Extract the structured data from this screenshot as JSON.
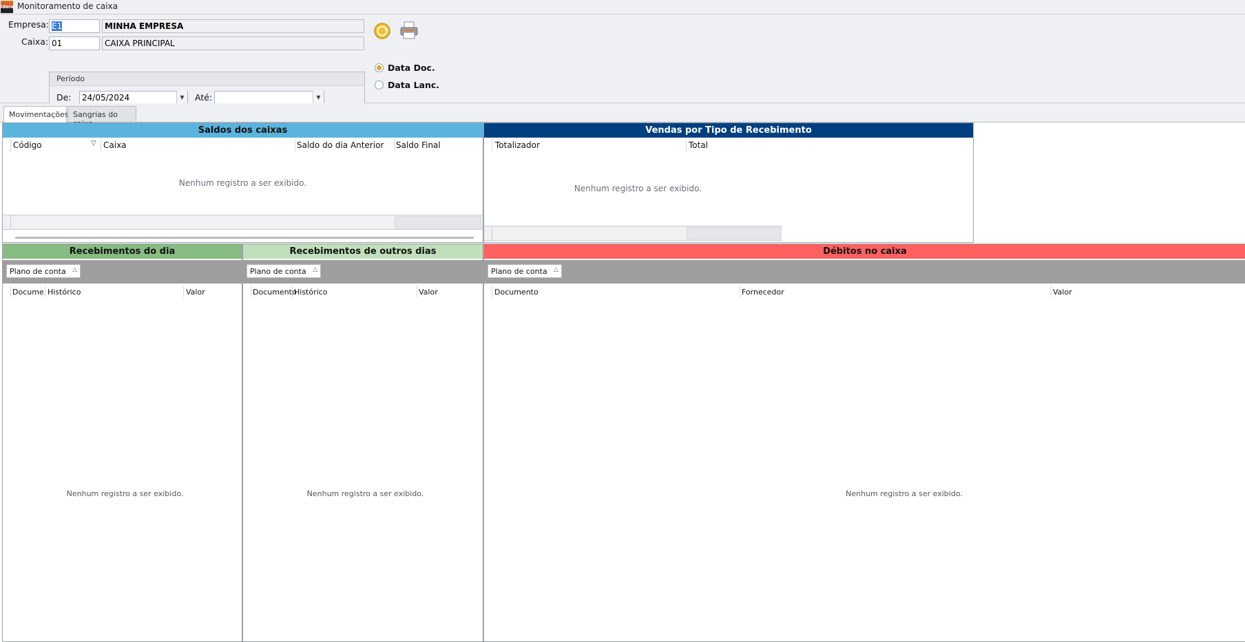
{
  "window": {
    "title": "Monitoramento de caixa",
    "logo_text": "ideia"
  },
  "form": {
    "empresa_label": "Empresa:",
    "empresa_code": "E1",
    "empresa_name": "MINHA EMPRESA",
    "caixa_label": "Caixa:",
    "caixa_code": "01",
    "caixa_name": "CAIXA PRINCIPAL",
    "periodo": {
      "title": "Período",
      "de_label": "De:",
      "de_value": "24/05/2024",
      "ate_label": "Até:",
      "ate_value": ""
    },
    "radio": [
      {
        "label": "Data Doc.",
        "checked": true
      },
      {
        "label": "Data Lanc.",
        "checked": false
      }
    ],
    "icons": {
      "refresh": "refresh-icon",
      "print": "printer-icon"
    }
  },
  "tabs": [
    {
      "label": "Movimentações",
      "active": true
    },
    {
      "label": "Sangrias do caixa",
      "active": false
    }
  ],
  "saldos": {
    "title": "Saldos dos caixas",
    "color": "#5ab4de",
    "columns": [
      "Código",
      "Caixa",
      "Saldo do dia Anterior",
      "Saldo Final"
    ],
    "empty": "Nenhum registro a ser exibido."
  },
  "vendas": {
    "title": "Vendas por Tipo de Recebimento",
    "color": "#003f7f",
    "columns": [
      "Totalizador",
      "Total"
    ],
    "empty": "Nenhum registro a ser exibido."
  },
  "receb_dia": {
    "title": "Recebimentos do dia",
    "color": "#86bb82",
    "group": "Plano de conta",
    "columns": [
      "Documento",
      "Histórico",
      "Valor"
    ],
    "empty": "Nenhum registro a ser exibido."
  },
  "receb_outros": {
    "title": "Recebimentos de outros dias",
    "color": "#bfe0bb",
    "group": "Plano de conta",
    "columns": [
      "Documento",
      "Histórico",
      "Valor"
    ],
    "empty": "Nenhum registro a ser exibido."
  },
  "debitos": {
    "title": "Débitos no caixa",
    "color": "#ff6161",
    "group": "Plano de conta",
    "columns": [
      "Documento",
      "Fornecedor",
      "Valor"
    ],
    "empty": "Nenhum registro a ser exibido."
  }
}
